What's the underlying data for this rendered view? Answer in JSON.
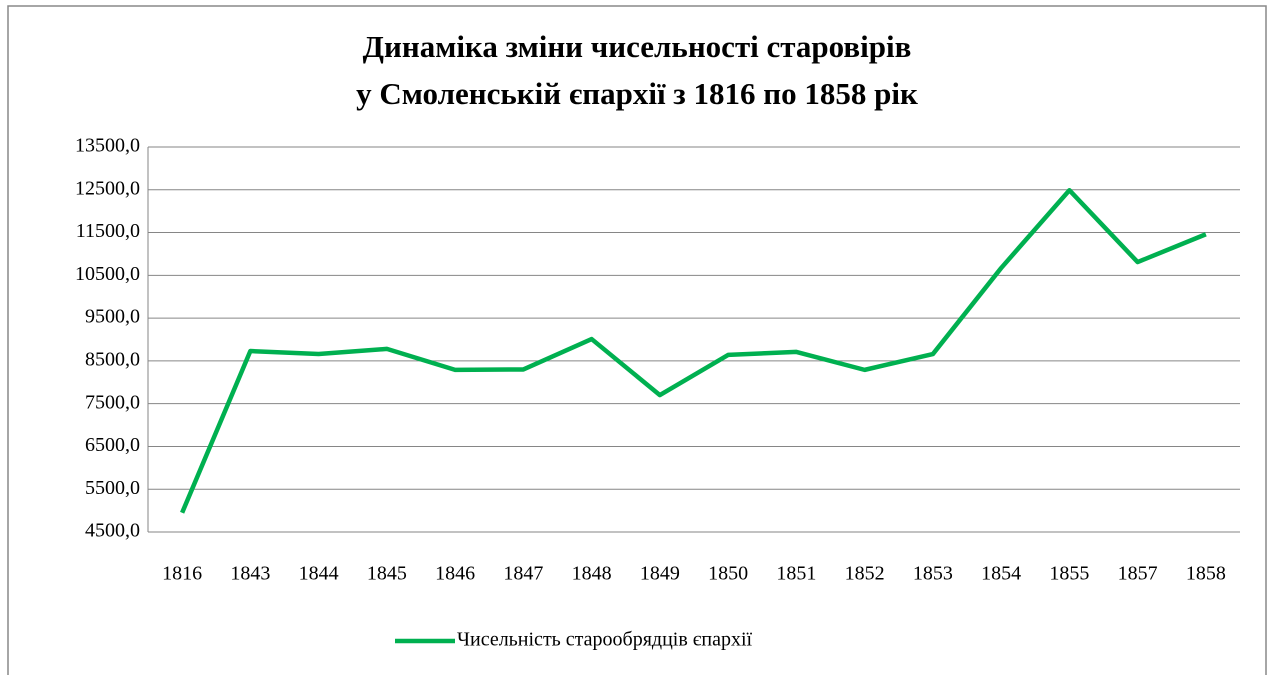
{
  "chart_data": {
    "type": "line",
    "title": [
      "Динаміка зміни чисельності старовірів",
      "у Смоленській єпархії з 1816 по 1858 рік"
    ],
    "categories": [
      "1816",
      "1843",
      "1844",
      "1845",
      "1846",
      "1847",
      "1848",
      "1849",
      "1850",
      "1851",
      "1852",
      "1853",
      "1854",
      "1855",
      "1857",
      "1858"
    ],
    "series": [
      {
        "name": "Чисельність старообрядців єпархії",
        "color": "#00b050",
        "values": [
          4950,
          8730,
          8660,
          8780,
          8290,
          8300,
          9010,
          7700,
          8640,
          8710,
          8290,
          8660,
          10670,
          12490,
          10810,
          11460
        ]
      }
    ],
    "ylim": [
      4500,
      13500
    ],
    "yticks": [
      {
        "value": 4500,
        "label": "4500,0"
      },
      {
        "value": 5500,
        "label": "5500,0"
      },
      {
        "value": 6500,
        "label": "6500,0"
      },
      {
        "value": 7500,
        "label": "7500,0"
      },
      {
        "value": 8500,
        "label": "8500,0"
      },
      {
        "value": 9500,
        "label": "9500,0"
      },
      {
        "value": 10500,
        "label": "10500,0"
      },
      {
        "value": 11500,
        "label": "11500,0"
      },
      {
        "value": 12500,
        "label": "12500,0"
      },
      {
        "value": 13500,
        "label": "13500,0"
      }
    ],
    "grid": true,
    "legend": "bottom"
  }
}
